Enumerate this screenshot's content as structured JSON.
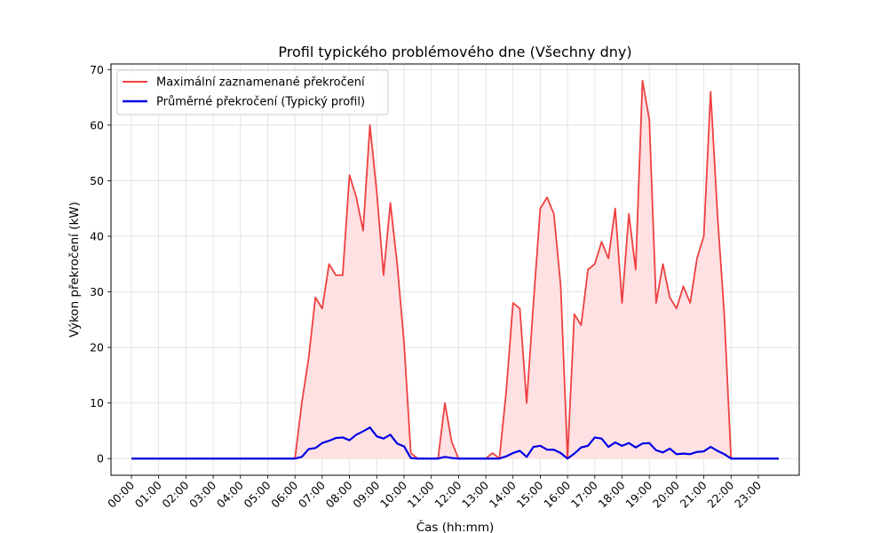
{
  "chart_data": {
    "type": "line",
    "title": "Profil typického problémového dne (Všechny dny)",
    "xlabel": "Čas (hh:mm)",
    "ylabel": "Výkon překročení (kW)",
    "ylim": [
      -3,
      71
    ],
    "yticks": [
      0,
      10,
      20,
      30,
      40,
      50,
      60,
      70
    ],
    "xlim": [
      "-00:45",
      "24:30"
    ],
    "xticks": [
      "00:00",
      "01:00",
      "02:00",
      "03:00",
      "04:00",
      "05:00",
      "06:00",
      "07:00",
      "08:00",
      "09:00",
      "10:00",
      "11:00",
      "12:00",
      "13:00",
      "14:00",
      "15:00",
      "16:00",
      "17:00",
      "18:00",
      "19:00",
      "20:00",
      "21:00",
      "22:00",
      "23:00"
    ],
    "grid": true,
    "legend_position": "top-left",
    "colors": {
      "max": "#ef4040",
      "avg": "#0000e6",
      "fill": "#ffe1e3"
    },
    "x": [
      "00:00",
      "00:15",
      "00:30",
      "00:45",
      "01:00",
      "01:15",
      "01:30",
      "01:45",
      "02:00",
      "02:15",
      "02:30",
      "02:45",
      "03:00",
      "03:15",
      "03:30",
      "03:45",
      "04:00",
      "04:15",
      "04:30",
      "04:45",
      "05:00",
      "05:15",
      "05:30",
      "05:45",
      "06:00",
      "06:15",
      "06:30",
      "06:45",
      "07:00",
      "07:15",
      "07:30",
      "07:45",
      "08:00",
      "08:15",
      "08:30",
      "08:45",
      "09:00",
      "09:15",
      "09:30",
      "09:45",
      "10:00",
      "10:15",
      "10:30",
      "10:45",
      "11:00",
      "11:15",
      "11:30",
      "11:45",
      "12:00",
      "12:15",
      "12:30",
      "12:45",
      "13:00",
      "13:15",
      "13:30",
      "13:45",
      "14:00",
      "14:15",
      "14:30",
      "14:45",
      "15:00",
      "15:15",
      "15:30",
      "15:45",
      "16:00",
      "16:15",
      "16:30",
      "16:45",
      "17:00",
      "17:15",
      "17:30",
      "17:45",
      "18:00",
      "18:15",
      "18:30",
      "18:45",
      "19:00",
      "19:15",
      "19:30",
      "19:45",
      "20:00",
      "20:15",
      "20:30",
      "20:45",
      "21:00",
      "21:15",
      "21:30",
      "21:45",
      "22:00",
      "22:15",
      "22:30",
      "22:45",
      "23:00",
      "23:15",
      "23:30",
      "23:45"
    ],
    "series": [
      {
        "name": "Maximální zaznamenané překročení",
        "values": [
          0,
          0,
          0,
          0,
          0,
          0,
          0,
          0,
          0,
          0,
          0,
          0,
          0,
          0,
          0,
          0,
          0,
          0,
          0,
          0,
          0,
          0,
          0,
          0,
          0,
          10,
          18,
          29,
          27,
          35,
          33,
          33,
          51,
          47,
          41,
          60,
          48,
          33,
          46,
          35,
          21,
          1,
          0,
          0,
          0,
          0,
          10,
          3,
          0,
          0,
          0,
          0,
          0,
          1,
          0,
          12,
          28,
          27,
          10,
          28,
          45,
          47,
          44,
          31,
          0,
          26,
          24,
          34,
          35,
          39,
          36,
          45,
          28,
          44,
          34,
          68,
          61,
          28,
          35,
          29,
          27,
          31,
          28,
          36,
          40,
          66,
          44,
          26,
          0,
          0,
          0,
          0,
          0,
          0,
          0,
          0
        ]
      },
      {
        "name": "Průměrné překročení (Typický profil)",
        "values": [
          0,
          0,
          0,
          0,
          0,
          0,
          0,
          0,
          0,
          0,
          0,
          0,
          0,
          0,
          0,
          0,
          0,
          0,
          0,
          0,
          0,
          0,
          0,
          0,
          0,
          0.3,
          1.7,
          1.9,
          2.8,
          3.2,
          3.7,
          3.8,
          3.3,
          4.3,
          4.9,
          5.6,
          4.0,
          3.6,
          4.3,
          2.7,
          2.2,
          0.1,
          0,
          0,
          0,
          0,
          0.3,
          0.1,
          0,
          0,
          0,
          0,
          0,
          0,
          0,
          0.4,
          1.0,
          1.4,
          0.3,
          2.1,
          2.3,
          1.6,
          1.6,
          1.0,
          0,
          0.9,
          2.0,
          2.3,
          3.8,
          3.6,
          2.1,
          2.9,
          2.3,
          2.8,
          2.0,
          2.7,
          2.8,
          1.5,
          1.1,
          1.8,
          0.8,
          0.9,
          0.8,
          1.2,
          1.3,
          2.1,
          1.4,
          0.8,
          0,
          0,
          0,
          0,
          0,
          0,
          0,
          0
        ]
      }
    ]
  }
}
